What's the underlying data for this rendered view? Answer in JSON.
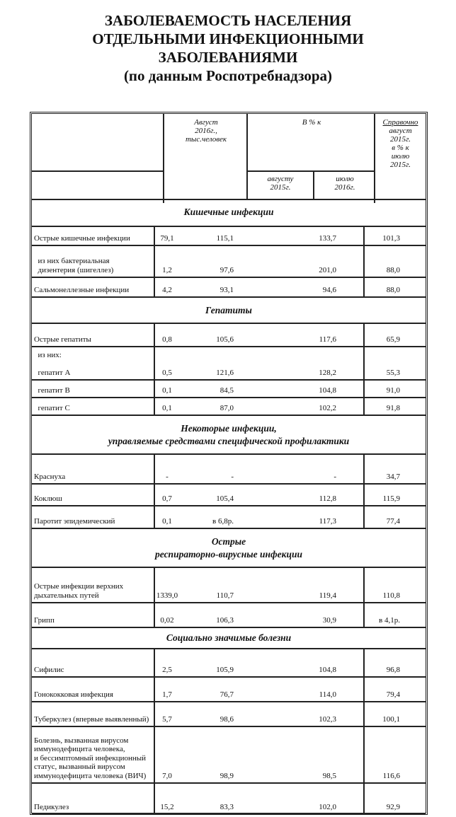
{
  "title": [
    "ЗАБОЛЕВАЕМОСТЬ НАСЕЛЕНИЯ",
    "ОТДЕЛЬНЫМИ ИНФЕКЦИОННЫМИ",
    "ЗАБОЛЕВАНИЯМИ",
    "(по данным Роспотребнадзора)"
  ],
  "header": {
    "col1": [
      "Август",
      "2016г.,",
      "тыс.человек"
    ],
    "pct": "В % к",
    "sub1": [
      "августу",
      "2015г."
    ],
    "sub2": [
      "июлю",
      "2016г."
    ],
    "ref_title": "Справочно",
    "ref": [
      "август",
      "2015г.",
      "в % к",
      "июлю",
      "2015г."
    ]
  },
  "rows": [
    {
      "type": "section",
      "label": [
        "Кишечные инфекции"
      ]
    },
    {
      "label": [
        "Острые кишечные инфекции"
      ],
      "values": [
        "79,1",
        "115,1",
        "133,7",
        "101,3"
      ]
    },
    {
      "label": [
        "  из них бактериальная",
        "  дизентерия (шигеллез)"
      ],
      "values": [
        "1,2",
        "97,6",
        "201,0",
        "88,0"
      ]
    },
    {
      "label": [
        "Сальмонеллезные инфекции"
      ],
      "values": [
        "4,2",
        "93,1",
        "94,6",
        "88,0"
      ]
    },
    {
      "type": "section",
      "label": [
        "Гепатиты"
      ]
    },
    {
      "label": [
        "Острые гепатиты"
      ],
      "values": [
        "0,8",
        "105,6",
        "117,6",
        "65,9"
      ]
    },
    {
      "label": [
        "  из них:",
        "",
        "  гепатит А"
      ],
      "values": [
        "0,5",
        "121,6",
        "128,2",
        "55,3"
      ]
    },
    {
      "label": [
        "  гепатит В"
      ],
      "values": [
        "0,1",
        "84,5",
        "104,8",
        "91,0"
      ]
    },
    {
      "label": [
        "  гепатит С"
      ],
      "values": [
        "0,1",
        "87,0",
        "102,2",
        "91,8"
      ]
    },
    {
      "type": "section",
      "label": [
        "Некоторые инфекции,",
        "управляемые средствами специфической профилактики"
      ]
    },
    {
      "label": [
        "Краснуха"
      ],
      "values": [
        "-",
        "-",
        "-",
        "34,7"
      ]
    },
    {
      "label": [
        "Коклюш"
      ],
      "values": [
        "0,7",
        "105,4",
        "112,8",
        "115,9"
      ]
    },
    {
      "label": [
        "Паротит эпидемический"
      ],
      "values": [
        "0,1",
        "в 6,8р.",
        "117,3",
        "77,4"
      ]
    },
    {
      "type": "section",
      "label": [
        "Острые",
        "респираторно-вирусные инфекции"
      ]
    },
    {
      "label": [
        "Острые инфекции верхних",
        "дыхательных путей"
      ],
      "values": [
        "1339,0",
        "110,7",
        "119,4",
        "110,8"
      ]
    },
    {
      "label": [
        "Грипп"
      ],
      "values": [
        "0,02",
        "106,3",
        "30,9",
        "в 4,1р."
      ]
    },
    {
      "type": "section",
      "label": [
        "Социально значимые болезни"
      ]
    },
    {
      "label": [
        "Сифилис"
      ],
      "values": [
        "2,5",
        "105,9",
        "104,8",
        "96,8"
      ]
    },
    {
      "label": [
        "Гонококковая инфекция"
      ],
      "values": [
        "1,7",
        "76,7",
        "114,0",
        "79,4"
      ]
    },
    {
      "label": [
        "Туберкулез (впервые выявленный)"
      ],
      "values": [
        "5,7",
        "98,6",
        "102,3",
        "100,1"
      ]
    },
    {
      "label": [
        "Болезнь, вызванная вирусом",
        "иммунодефицита человека,",
        "и бессимптомный инфекционный",
        "статус, вызванный вирусом",
        "иммунодефицита человека (ВИЧ)"
      ],
      "values": [
        "7,0",
        "98,9",
        "98,5",
        "116,6"
      ]
    },
    {
      "label": [
        "Педикулез"
      ],
      "values": [
        "15,2",
        "83,3",
        "102,0",
        "92,9"
      ]
    }
  ]
}
